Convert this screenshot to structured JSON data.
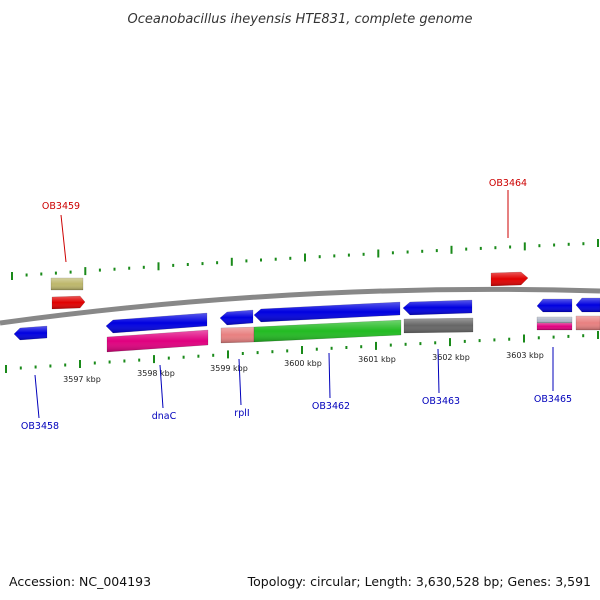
{
  "title": "Oceanobacillus iheyensis HTE831, complete genome",
  "footer": {
    "accession": "Accession: NC_004193",
    "summary": "Topology: circular; Length: 3,630,528 bp; Genes: 3,591"
  },
  "colors": {
    "backbone": "#888888",
    "tick": "#1a8a1a",
    "label_upper": "#cc0000",
    "label_lower": "#0000bb"
  },
  "scale": {
    "unit": "kbp",
    "ticks": [
      {
        "label": "3597 kbp"
      },
      {
        "label": "3598 kbp"
      },
      {
        "label": "3599 kbp"
      },
      {
        "label": "3600 kbp"
      },
      {
        "label": "3601 kbp"
      },
      {
        "label": "3602 kbp"
      },
      {
        "label": "3603 kbp"
      }
    ]
  },
  "gene_labels": {
    "upper": [
      {
        "name": "OB3459"
      },
      {
        "name": "OB3464"
      }
    ],
    "lower": [
      {
        "name": "OB3458"
      },
      {
        "name": "dnaC"
      },
      {
        "name": "rplI"
      },
      {
        "name": "OB3462"
      },
      {
        "name": "OB3463"
      },
      {
        "name": "OB3465"
      }
    ]
  },
  "features": [
    {
      "strand": "forward",
      "color": "#bdb76b"
    },
    {
      "strand": "forward",
      "color": "#e00000"
    },
    {
      "strand": "forward",
      "color": "#e00000"
    },
    {
      "strand": "reverse",
      "color": "#0000e0"
    },
    {
      "strand": "reverse",
      "color": "#0000e0"
    },
    {
      "strand": "reverse",
      "color": "#e0007f"
    },
    {
      "strand": "reverse",
      "color": "#0000e0"
    },
    {
      "strand": "reverse",
      "color": "#e88080"
    },
    {
      "strand": "reverse",
      "color": "#0000e0"
    },
    {
      "strand": "reverse",
      "color": "#22bb22"
    },
    {
      "strand": "reverse",
      "color": "#0000e0"
    },
    {
      "strand": "reverse",
      "color": "#666666"
    },
    {
      "strand": "reverse",
      "color": "#0000e0"
    },
    {
      "strand": "reverse",
      "color": "#b0b8c8"
    },
    {
      "strand": "reverse",
      "color": "#e0007f"
    },
    {
      "strand": "reverse",
      "color": "#0000e0"
    },
    {
      "strand": "reverse",
      "color": "#e88080"
    }
  ]
}
